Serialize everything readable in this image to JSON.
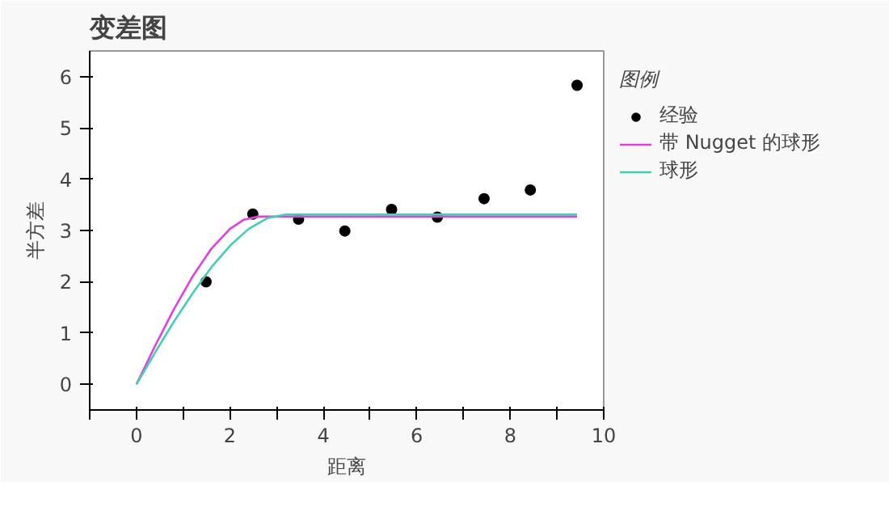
{
  "chart_data": {
    "type": "scatter",
    "title": "变差图",
    "xlabel": "距离",
    "ylabel": "半方差",
    "legend_title": "图例",
    "legend": "right",
    "grid": false,
    "xlim": [
      -1,
      10
    ],
    "ylim": [
      -0.5,
      6.5
    ],
    "xticks": [
      {
        "value": -1,
        "label": null
      },
      0,
      {
        "value": 1,
        "label": null
      },
      2,
      {
        "value": 3,
        "label": null
      },
      4,
      {
        "value": 5,
        "label": null
      },
      6,
      {
        "value": 7,
        "label": null
      },
      8,
      {
        "value": 9,
        "label": null
      },
      10
    ],
    "yticks": [
      0,
      1,
      2,
      3,
      4,
      5,
      6
    ],
    "series": [
      {
        "name": "经验",
        "marker": "circle",
        "color": "#000000",
        "x": [
          1.49,
          2.49,
          3.47,
          4.46,
          5.46,
          6.44,
          7.44,
          8.43,
          9.43
        ],
        "values": [
          2.0,
          3.32,
          3.22,
          2.99,
          3.41,
          3.26,
          3.62,
          3.79,
          5.83
        ]
      },
      {
        "name": "带 Nugget 的球形",
        "type": "line",
        "color": "#e040e0",
        "x": [
          0,
          0.4,
          0.8,
          1.2,
          1.6,
          2.0,
          2.3,
          2.6,
          9.43
        ],
        "values": [
          0,
          0.75,
          1.46,
          2.1,
          2.64,
          3.03,
          3.21,
          3.27,
          3.27
        ]
      },
      {
        "name": "球形",
        "type": "line",
        "color": "#40d0b0",
        "x": [
          0,
          0.4,
          0.8,
          1.2,
          1.6,
          2.0,
          2.4,
          2.8,
          3.2,
          9.43
        ],
        "values": [
          0,
          0.62,
          1.22,
          1.77,
          2.28,
          2.7,
          3.03,
          3.24,
          3.31,
          3.31
        ]
      }
    ]
  }
}
